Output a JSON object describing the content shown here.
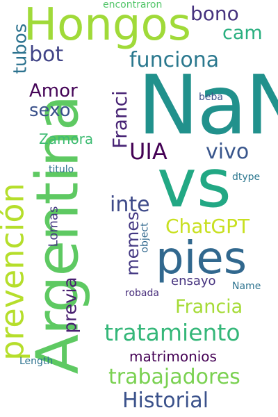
{
  "words": [
    {
      "text": "NaN",
      "color": "#21918c"
    },
    {
      "text": "Argentina",
      "color": "#5ec962"
    },
    {
      "text": "vs",
      "color": "#22a884"
    },
    {
      "text": "Hongos",
      "color": "#a0da39"
    },
    {
      "text": "prevención",
      "color": "#b5de2b"
    },
    {
      "text": "pies",
      "color": "#31688e"
    },
    {
      "text": "tratamiento",
      "color": "#35b779"
    },
    {
      "text": "trabajadores",
      "color": "#7ad151"
    },
    {
      "text": "Historial",
      "color": "#3b528b"
    },
    {
      "text": "Francia",
      "color": "#a5db36"
    },
    {
      "text": "ChatGPT",
      "color": "#c8e020"
    },
    {
      "text": "funciona",
      "color": "#2a788e"
    },
    {
      "text": "UIA",
      "color": "#440154"
    },
    {
      "text": "vivo",
      "color": "#39568c"
    },
    {
      "text": "inte",
      "color": "#3e4a89"
    },
    {
      "text": "bono",
      "color": "#46327e"
    },
    {
      "text": "cam",
      "color": "#29af7f"
    },
    {
      "text": "bot",
      "color": "#414487"
    },
    {
      "text": "tubos",
      "color": "#2c728e"
    },
    {
      "text": "Amor",
      "color": "#450457"
    },
    {
      "text": "sexo",
      "color": "#3b528b"
    },
    {
      "text": "Franci",
      "color": "#482475"
    },
    {
      "text": "memes",
      "color": "#443983"
    },
    {
      "text": "previa",
      "color": "#481f70"
    },
    {
      "text": "Zamora",
      "color": "#3fbc73"
    },
    {
      "text": "Lomas",
      "color": "#453882"
    },
    {
      "text": "matrimonios",
      "color": "#440154"
    },
    {
      "text": "ensayo",
      "color": "#46337f"
    },
    {
      "text": "encontraron",
      "color": "#52c569"
    },
    {
      "text": "beba",
      "color": "#3b528b"
    },
    {
      "text": "titulo",
      "color": "#2d708e"
    },
    {
      "text": "dtype",
      "color": "#2a768e"
    },
    {
      "text": "object",
      "color": "#31688e"
    },
    {
      "text": "robada",
      "color": "#472d7b"
    },
    {
      "text": "Name",
      "color": "#2c728e"
    },
    {
      "text": "Length",
      "color": "#2c728e"
    }
  ]
}
